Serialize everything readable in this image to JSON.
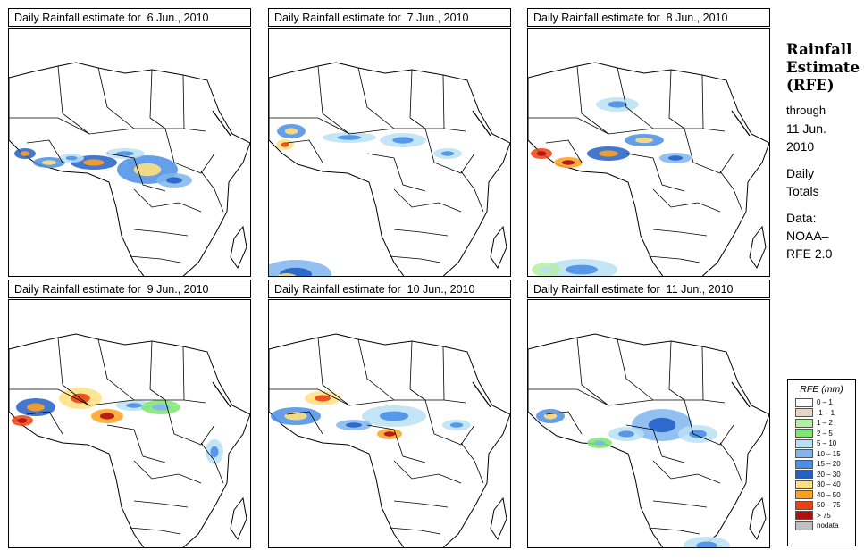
{
  "panels": [
    {
      "title": "Daily Rainfall estimate for  6 Jun., 2010"
    },
    {
      "title": "Daily Rainfall estimate for  7 Jun., 2010"
    },
    {
      "title": "Daily Rainfall estimate for  8 Jun., 2010"
    },
    {
      "title": "Daily Rainfall estimate for  9 Jun., 2010"
    },
    {
      "title": "Daily Rainfall estimate for  10 Jun., 2010"
    },
    {
      "title": "Daily Rainfall estimate for  11 Jun., 2010"
    }
  ],
  "side": {
    "title_line1": "Rainfall",
    "title_line2": "Estimate",
    "title_line3": "(RFE)",
    "through": "through",
    "date_line1": "11 Jun.",
    "date_line2": "2010",
    "daily": "Daily",
    "totals": "Totals",
    "data_label": "Data:",
    "source_line1": "NOAA–",
    "source_line2": "RFE 2.0"
  },
  "legend": {
    "title": "RFE (mm)",
    "items": [
      {
        "label": "0 – 1",
        "color": "#ffffff"
      },
      {
        "label": ".1 – 1",
        "color": "#e6d7c3"
      },
      {
        "label": "1 – 2",
        "color": "#b4f0a0"
      },
      {
        "label": "2 – 5",
        "color": "#7de66e"
      },
      {
        "label": "5 – 10",
        "color": "#b8e0f5"
      },
      {
        "label": "10 – 15",
        "color": "#7fb6ee"
      },
      {
        "label": "15 – 20",
        "color": "#4a8ee6"
      },
      {
        "label": "20 – 30",
        "color": "#2360c8"
      },
      {
        "label": "30 – 40",
        "color": "#ffe080"
      },
      {
        "label": "40 – 50",
        "color": "#ffa020"
      },
      {
        "label": "50 – 75",
        "color": "#f04010"
      },
      {
        "label": "> 75",
        "color": "#b01010"
      },
      {
        "label": "nodata",
        "color": "#c0c0c0"
      }
    ]
  }
}
